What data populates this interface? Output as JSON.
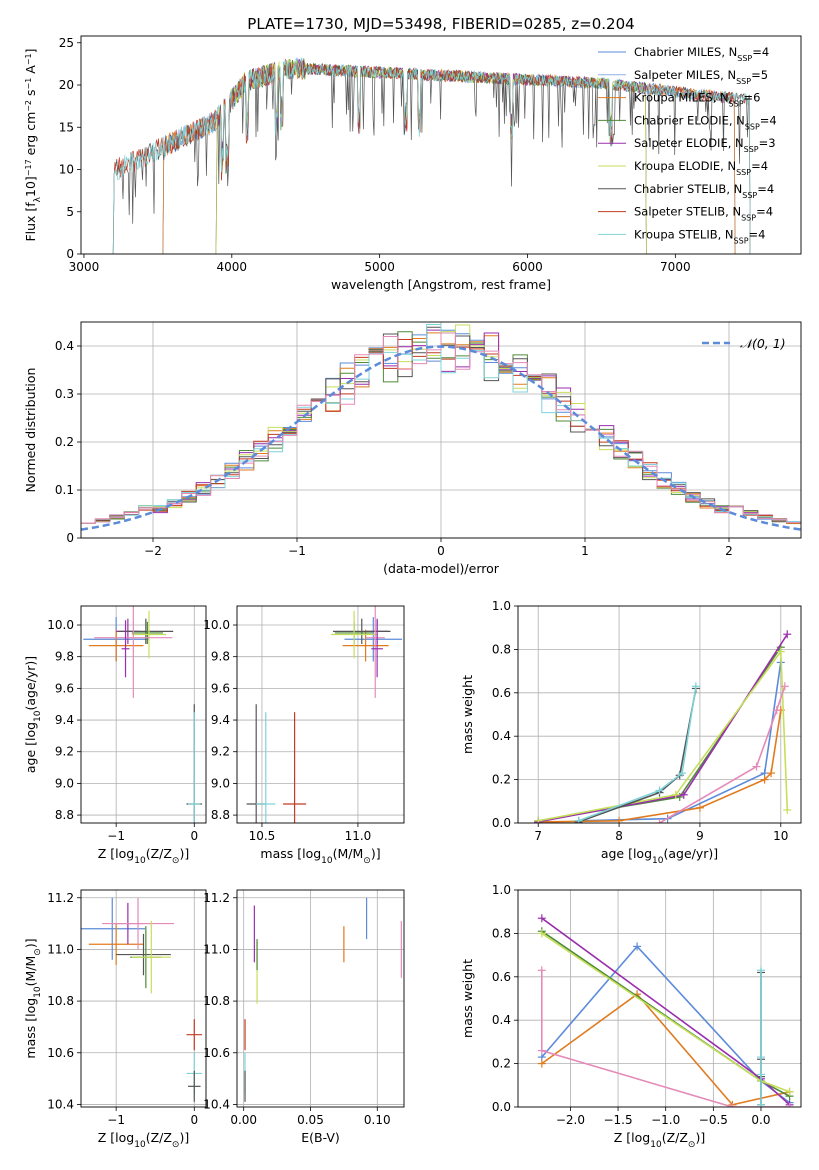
{
  "chart_data": [
    {
      "id": "spectrum",
      "type": "line",
      "title": "PLATE=1730, MJD=53498, FIBERID=0285, z=0.204",
      "xlabel": "wavelength [Angstrom, rest frame]",
      "ylabel": "Flux [f",
      "ylabel_sub": "λ",
      "ylabel_rest": "10",
      "ylabel_exp": "−17",
      "ylabel_units": " erg cm",
      "ylabel_units_exp1": "−2",
      "ylabel_units2": " s",
      "ylabel_units_exp2": "−1",
      "ylabel_units3": " A",
      "ylabel_units_exp3": "−1",
      "ylabel_close": "]",
      "xlim": [
        2980,
        7850
      ],
      "ylim": [
        0,
        25.8
      ],
      "xticks": [
        3000,
        4000,
        5000,
        6000,
        7000
      ],
      "yticks": [
        0,
        5,
        10,
        15,
        20,
        25
      ],
      "legend": "upper right",
      "series": [
        {
          "name": "Chabrier MILES, N",
          "sub": "SSP",
          "tail": "=4",
          "color": "#5b8bd9",
          "start": 3540,
          "end": 7400
        },
        {
          "name": "Salpeter MILES, N",
          "sub": "SSP",
          "tail": "=5",
          "color": "#8ab0e8",
          "start": 3540,
          "end": 7400
        },
        {
          "name": "Kroupa MILES, N",
          "sub": "SSP",
          "tail": "=6",
          "color": "#e07b1f",
          "start": 3540,
          "end": 7400
        },
        {
          "name": "Chabrier ELODIE, N",
          "sub": "SSP",
          "tail": "=4",
          "color": "#4f8a3a",
          "start": 3900,
          "end": 6800
        },
        {
          "name": "Salpeter ELODIE, N",
          "sub": "SSP",
          "tail": "=3",
          "color": "#9b2fae",
          "start": 3900,
          "end": 6800
        },
        {
          "name": "Kroupa ELODIE, N",
          "sub": "SSP",
          "tail": "=4",
          "color": "#c6df5a",
          "start": 3900,
          "end": 6800
        },
        {
          "name": "Chabrier STELIB, N",
          "sub": "SSP",
          "tail": "=4",
          "color": "#555555",
          "start": 3200,
          "end": 7500
        },
        {
          "name": "Salpeter STELIB, N",
          "sub": "SSP",
          "tail": "=4",
          "color": "#c23b22",
          "start": 3200,
          "end": 7500
        },
        {
          "name": "Kroupa STELIB, N",
          "sub": "SSP",
          "tail": "=4",
          "color": "#7fd3d8",
          "start": 3200,
          "end": 7500
        }
      ]
    },
    {
      "id": "residuals",
      "type": "line",
      "xlabel": "(data-model)/error",
      "ylabel": "Normed distribution",
      "xlim": [
        -2.5,
        2.5
      ],
      "ylim": [
        0,
        0.45
      ],
      "xticks": [
        -2,
        -1,
        0,
        1,
        2
      ],
      "xticklabels": [
        "−2",
        "−1",
        "0",
        "1",
        "2"
      ],
      "yticks": [
        0.0,
        0.1,
        0.2,
        0.3,
        0.4
      ],
      "legend": "upper right",
      "legend_entry": "𝒩(0, 1)",
      "gaussian_color": "#5b8bd9",
      "hist_colors": [
        "#5b8bd9",
        "#e07b1f",
        "#4f8a3a",
        "#9b2fae",
        "#c6df5a",
        "#555555",
        "#c23b22",
        "#7fd3d8",
        "#e58ab8"
      ]
    },
    {
      "id": "age_vs_Z",
      "type": "scatter",
      "xlabel": "Z [log",
      "xlabel_sub": "10",
      "xlabel_rest": "(Z/Z",
      "xlabel_sun": "⊙",
      "xlabel_close": ")]",
      "ylabel": "age  [log",
      "ylabel_sub": "10",
      "ylabel_rest": "(age/yr)]",
      "xlim": [
        -1.45,
        0.15
      ],
      "ylim": [
        8.75,
        10.12
      ],
      "xticks": [
        -1,
        0
      ],
      "xticklabels": [
        "−1",
        "0"
      ],
      "yticks": [
        8.8,
        9.0,
        9.2,
        9.4,
        9.6,
        9.8,
        10.0
      ],
      "yticklabels": [
        "8.8",
        "9.0",
        "9.2",
        "9.4",
        "9.6",
        "9.8",
        "10.0"
      ],
      "points": [
        {
          "x": -1.0,
          "y": 9.91,
          "xerr": 0.42,
          "yerr": 0.14,
          "color": "#5b8bd9"
        },
        {
          "x": -1.0,
          "y": 9.87,
          "xerr": 0.35,
          "yerr": 0.1,
          "color": "#e07b1f"
        },
        {
          "x": -0.85,
          "y": 9.96,
          "xerr": 0.15,
          "yerr": 0.08,
          "color": "#9b2fae"
        },
        {
          "x": -0.62,
          "y": 9.96,
          "xerr": 0.35,
          "yerr": 0.08,
          "color": "#555555"
        },
        {
          "x": -0.6,
          "y": 9.95,
          "xerr": 0.2,
          "yerr": 0.07,
          "color": "#4f8a3a"
        },
        {
          "x": -0.58,
          "y": 9.94,
          "xerr": 0.22,
          "yerr": 0.15,
          "color": "#c6df5a"
        },
        {
          "x": -0.78,
          "y": 9.92,
          "xerr": 0.5,
          "yerr": 0.38,
          "color": "#e58ab8"
        },
        {
          "x": -0.88,
          "y": 9.85,
          "xerr": 0.05,
          "yerr": 0.18,
          "color": "#9b2fae"
        },
        {
          "x": 0.0,
          "y": 8.87,
          "xerr": 0.1,
          "yerr": 0.63,
          "color": "#555555"
        },
        {
          "x": 0.0,
          "y": 8.87,
          "xerr": 0.08,
          "yerr": 0.58,
          "color": "#7fd3d8"
        }
      ]
    },
    {
      "id": "age_vs_mass",
      "type": "scatter",
      "xlabel": "mass [log",
      "xlabel_sub": "10",
      "xlabel_rest": "(M/M",
      "xlabel_sun": "⊙",
      "xlabel_close": ")]",
      "xlim": [
        10.37,
        11.24
      ],
      "ylim": [
        8.75,
        10.12
      ],
      "xticks": [
        10.5,
        11.0
      ],
      "xticklabels": [
        "10.5",
        "11.0"
      ],
      "yticks": [
        8.8,
        9.0,
        9.2,
        9.4,
        9.6,
        9.8,
        10.0
      ],
      "yticklabels": [
        "8.8",
        "9.0",
        "9.2",
        "9.4",
        "9.6",
        "9.8",
        "10.0"
      ],
      "points": [
        {
          "x": 11.08,
          "y": 9.91,
          "xerr": 0.15,
          "yerr": 0.14,
          "color": "#5b8bd9"
        },
        {
          "x": 11.04,
          "y": 9.87,
          "xerr": 0.12,
          "yerr": 0.1,
          "color": "#e07b1f"
        },
        {
          "x": 11.1,
          "y": 9.96,
          "xerr": 0.06,
          "yerr": 0.08,
          "color": "#9b2fae"
        },
        {
          "x": 11.02,
          "y": 9.96,
          "xerr": 0.15,
          "yerr": 0.08,
          "color": "#555555"
        },
        {
          "x": 10.98,
          "y": 9.95,
          "xerr": 0.1,
          "yerr": 0.07,
          "color": "#4f8a3a"
        },
        {
          "x": 10.98,
          "y": 9.94,
          "xerr": 0.12,
          "yerr": 0.15,
          "color": "#c6df5a"
        },
        {
          "x": 11.09,
          "y": 9.92,
          "xerr": 0.05,
          "yerr": 0.38,
          "color": "#e58ab8"
        },
        {
          "x": 11.1,
          "y": 9.85,
          "xerr": 0.03,
          "yerr": 0.18,
          "color": "#9b2fae"
        },
        {
          "x": 10.47,
          "y": 8.87,
          "xerr": 0.05,
          "yerr": 0.63,
          "color": "#555555"
        },
        {
          "x": 10.52,
          "y": 8.87,
          "xerr": 0.05,
          "yerr": 0.58,
          "color": "#7fd3d8"
        },
        {
          "x": 10.67,
          "y": 8.87,
          "xerr": 0.06,
          "yerr": 0.58,
          "color": "#c23b22"
        }
      ]
    },
    {
      "id": "weight_vs_age",
      "type": "line",
      "xlabel": "age  [log",
      "xlabel_sub": "10",
      "xlabel_rest": "(age/yr)]",
      "ylabel": "mass weight",
      "xlim": [
        6.75,
        10.25
      ],
      "ylim": [
        0.0,
        1.0
      ],
      "xticks": [
        7,
        8,
        9,
        10
      ],
      "yticks": [
        0.0,
        0.2,
        0.4,
        0.6,
        0.8,
        1.0
      ],
      "yticklabels": [
        "0.0",
        "0.2",
        "0.4",
        "0.6",
        "0.8",
        "1.0"
      ],
      "series": [
        {
          "color": "#5b8bd9",
          "x": [
            7.5,
            8.6,
            9.8,
            10.0
          ],
          "y": [
            0.01,
            0.02,
            0.23,
            0.74
          ]
        },
        {
          "color": "#e07b1f",
          "x": [
            7.0,
            8.0,
            9.0,
            9.8,
            9.88,
            10.0
          ],
          "y": [
            0.005,
            0.01,
            0.07,
            0.2,
            0.23,
            0.52
          ]
        },
        {
          "color": "#4f8a3a",
          "x": [
            7.0,
            8.75,
            10.0
          ],
          "y": [
            0.01,
            0.12,
            0.81
          ]
        },
        {
          "color": "#9b2fae",
          "x": [
            7.0,
            8.8,
            10.08
          ],
          "y": [
            0.005,
            0.13,
            0.87
          ]
        },
        {
          "color": "#c6df5a",
          "x": [
            7.0,
            8.7,
            10.0,
            10.08
          ],
          "y": [
            0.01,
            0.13,
            0.79,
            0.06
          ]
        },
        {
          "color": "#e58ab8",
          "x": [
            8.5,
            9.7,
            9.95,
            10.05
          ],
          "y": [
            0.0,
            0.26,
            0.52,
            0.63
          ]
        },
        {
          "color": "#555555",
          "x": [
            7.5,
            8.5,
            8.75,
            8.95
          ],
          "y": [
            0.005,
            0.14,
            0.22,
            0.62
          ]
        },
        {
          "color": "#7fd3d8",
          "x": [
            7.5,
            8.5,
            8.78,
            8.95
          ],
          "y": [
            0.01,
            0.15,
            0.23,
            0.63
          ]
        }
      ]
    },
    {
      "id": "mass_vs_Z",
      "type": "scatter",
      "xlabel": "Z [log",
      "xlabel_sub": "10",
      "xlabel_rest": "(Z/Z",
      "xlabel_sun": "⊙",
      "xlabel_close": ")]",
      "ylabel": "mass [log",
      "ylabel_sub": "10",
      "ylabel_rest": "(M/M",
      "ylabel_sun": "⊙",
      "ylabel_close": ")]",
      "xlim": [
        -1.45,
        0.15
      ],
      "ylim": [
        10.39,
        11.23
      ],
      "xticks": [
        -1,
        0
      ],
      "xticklabels": [
        "−1",
        "0"
      ],
      "yticks": [
        10.4,
        10.6,
        10.8,
        11.0,
        11.2
      ],
      "yticklabels": [
        "10.4",
        "10.6",
        "10.8",
        "11.0",
        "11.2"
      ],
      "points": [
        {
          "x": -1.05,
          "y": 11.08,
          "xerr": 0.42,
          "yerr": 0.12,
          "color": "#5b8bd9"
        },
        {
          "x": -1.0,
          "y": 11.02,
          "xerr": 0.35,
          "yerr": 0.08,
          "color": "#e07b1f"
        },
        {
          "x": -0.85,
          "y": 11.1,
          "xerr": 0.2,
          "yerr": 0.08,
          "color": "#9b2fae"
        },
        {
          "x": -0.72,
          "y": 11.1,
          "xerr": 0.46,
          "yerr": 0.1,
          "color": "#e58ab8"
        },
        {
          "x": -0.65,
          "y": 10.98,
          "xerr": 0.35,
          "yerr": 0.08,
          "color": "#555555"
        },
        {
          "x": -0.62,
          "y": 10.97,
          "xerr": 0.2,
          "yerr": 0.12,
          "color": "#4f8a3a"
        },
        {
          "x": -0.55,
          "y": 10.97,
          "xerr": 0.25,
          "yerr": 0.14,
          "color": "#c6df5a"
        },
        {
          "x": 0.0,
          "y": 10.67,
          "xerr": 0.1,
          "yerr": 0.06,
          "color": "#c23b22"
        },
        {
          "x": 0.0,
          "y": 10.52,
          "xerr": 0.1,
          "yerr": 0.08,
          "color": "#7fd3d8"
        },
        {
          "x": 0.0,
          "y": 10.47,
          "xerr": 0.08,
          "yerr": 0.06,
          "color": "#555555"
        }
      ]
    },
    {
      "id": "mass_vs_ebv",
      "type": "scatter",
      "xlabel": "E(B-V)",
      "xlim": [
        -0.005,
        0.12
      ],
      "ylim": [
        10.39,
        11.23
      ],
      "xticks": [
        0.0,
        0.05,
        0.1
      ],
      "xticklabels": [
        "0.00",
        "0.05",
        "0.10"
      ],
      "yticks": [
        10.4,
        10.6,
        10.8,
        11.0,
        11.2
      ],
      "yticklabels": [
        "10.4",
        "10.6",
        "10.8",
        "11.0",
        "11.2"
      ],
      "points": [
        {
          "x": 0.001,
          "y": 10.67,
          "xerr": 0,
          "yerr": 0.06,
          "color": "#c23b22"
        },
        {
          "x": 0.001,
          "y": 10.52,
          "xerr": 0,
          "yerr": 0.08,
          "color": "#7fd3d8"
        },
        {
          "x": 0.001,
          "y": 10.47,
          "xerr": 0,
          "yerr": 0.06,
          "color": "#555555"
        },
        {
          "x": 0.008,
          "y": 11.06,
          "xerr": 0,
          "yerr": 0.11,
          "color": "#9b2fae"
        },
        {
          "x": 0.01,
          "y": 10.91,
          "xerr": 0,
          "yerr": 0.12,
          "color": "#c6df5a"
        },
        {
          "x": 0.01,
          "y": 10.98,
          "xerr": 0,
          "yerr": 0.06,
          "color": "#4f8a3a"
        },
        {
          "x": 0.075,
          "y": 11.02,
          "xerr": 0,
          "yerr": 0.07,
          "color": "#e07b1f"
        },
        {
          "x": 0.092,
          "y": 11.12,
          "xerr": 0,
          "yerr": 0.08,
          "color": "#5b8bd9"
        },
        {
          "x": 0.118,
          "y": 11.0,
          "xerr": 0,
          "yerr": 0.11,
          "color": "#e58ab8"
        }
      ]
    },
    {
      "id": "weight_vs_Z",
      "type": "line",
      "xlabel": "Z [log",
      "xlabel_sub": "10",
      "xlabel_rest": "(Z/Z",
      "xlabel_sun": "⊙",
      "xlabel_close": ")]",
      "ylabel": "mass weight",
      "xlim": [
        -2.55,
        0.42
      ],
      "ylim": [
        0.0,
        1.0
      ],
      "xticks": [
        -2.0,
        -1.5,
        -1.0,
        -0.5,
        0.0
      ],
      "xticklabels": [
        "−2.0",
        "−1.5",
        "−1.0",
        "−0.5",
        "0.0"
      ],
      "yticks": [
        0.0,
        0.2,
        0.4,
        0.6,
        0.8,
        1.0
      ],
      "yticklabels": [
        "0.0",
        "0.2",
        "0.4",
        "0.6",
        "0.8",
        "1.0"
      ],
      "series": [
        {
          "color": "#5b8bd9",
          "x": [
            -2.3,
            -1.3,
            0.0,
            0.3
          ],
          "y": [
            0.23,
            0.74,
            0.12,
            0.02
          ]
        },
        {
          "color": "#e07b1f",
          "x": [
            -2.3,
            -1.3,
            -0.3,
            0.3
          ],
          "y": [
            0.2,
            0.52,
            0.01,
            0.07
          ]
        },
        {
          "color": "#4f8a3a",
          "x": [
            -2.3,
            0.0,
            0.3
          ],
          "y": [
            0.81,
            0.12,
            0.05
          ]
        },
        {
          "color": "#9b2fae",
          "x": [
            -2.3,
            0.0,
            0.3
          ],
          "y": [
            0.87,
            0.13,
            0.01
          ]
        },
        {
          "color": "#c6df5a",
          "x": [
            -2.3,
            0.0,
            0.3
          ],
          "y": [
            0.8,
            0.12,
            0.07
          ]
        },
        {
          "color": "#e58ab8",
          "x": [
            -2.3,
            -2.3,
            -0.3,
            0.3
          ],
          "y": [
            0.63,
            0.26,
            0.0,
            0.0
          ]
        },
        {
          "color": "#555555",
          "x": [
            0.0,
            0.0,
            0.0,
            0.0
          ],
          "y": [
            0.62,
            0.22,
            0.14,
            0.01
          ]
        },
        {
          "color": "#7fd3d8",
          "x": [
            0.0,
            0.0,
            0.0,
            0.0
          ],
          "y": [
            0.63,
            0.23,
            0.15,
            0.01
          ]
        }
      ]
    }
  ]
}
